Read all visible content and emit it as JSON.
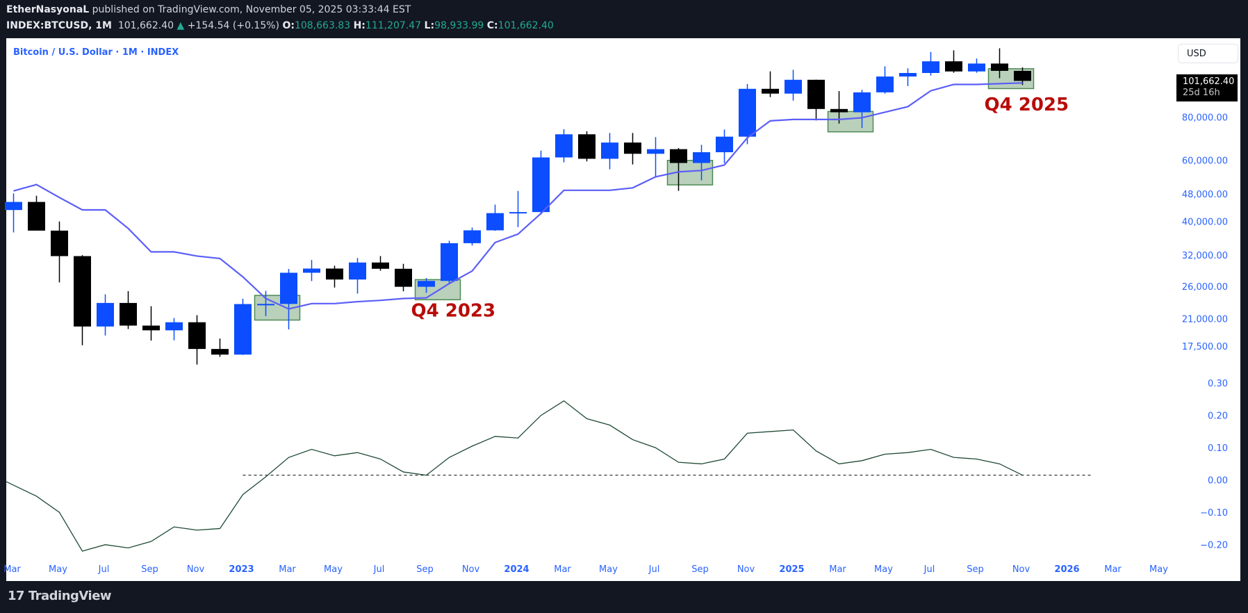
{
  "header": {
    "author": "EtherNasyonaL",
    "published": "published on TradingView.com, November 05, 2025 03:33:44 EST",
    "symbol": "INDEX:BTCUSD, 1M",
    "last": "101,662.40",
    "change": "+154.54 (+0.15%)",
    "o_label": "O:",
    "o": "108,663.83",
    "h_label": "H:",
    "h": "111,207.47",
    "l_label": "L:",
    "l": "98,933.99",
    "c_label": "C:",
    "c": "101,662.40"
  },
  "chart_title": "Bitcoin / U.S. Dollar · 1M · INDEX",
  "currency_button": "USD",
  "price_tag": {
    "price": "101,662.40",
    "countdown": "25d 16h"
  },
  "footer_logo": "TradingView",
  "colors": {
    "up": "#0b4dff",
    "down": "#000000",
    "ma": "#5b5ef7",
    "osc": "#1e4a34",
    "box_fill": "#b9d0bb",
    "box_border": "#4c8a52",
    "annotation": "#b80c09",
    "axis_text": "#2962ff"
  },
  "chart_data": [
    {
      "type": "candlestick",
      "scale": "log",
      "x_start": "2022-03",
      "y_ticks": [
        "17,500.00",
        "21,000.00",
        "26,000.00",
        "32,000.00",
        "40,000.00",
        "48,000.00",
        "60,000.00",
        "80,000.00"
      ],
      "y_tick_values": [
        17500,
        21000,
        26000,
        32000,
        40000,
        48000,
        60000,
        80000
      ],
      "x_tick_labels": [
        "Mar",
        "May",
        "Jul",
        "Sep",
        "Nov",
        "2023",
        "Mar",
        "May",
        "Jul",
        "Sep",
        "Nov",
        "2024",
        "Mar",
        "May",
        "Jul",
        "Sep",
        "Nov",
        "2025",
        "Mar",
        "May",
        "Jul",
        "Sep",
        "Nov",
        "2026",
        "Mar",
        "May"
      ],
      "candles_ohlc": [
        [
          43160,
          48200,
          37200,
          45540
        ],
        [
          45540,
          47440,
          37700,
          37650
        ],
        [
          37650,
          40000,
          26700,
          31790
        ],
        [
          31790,
          31990,
          17600,
          19930
        ],
        [
          19930,
          24670,
          18780,
          23300
        ],
        [
          23300,
          25200,
          19600,
          20050
        ],
        [
          20050,
          22800,
          18150,
          19430
        ],
        [
          19430,
          21080,
          18190,
          20500
        ],
        [
          20500,
          21480,
          15480,
          17170
        ],
        [
          17170,
          18400,
          16300,
          16540
        ],
        [
          16540,
          23960,
          16500,
          23130
        ],
        [
          23130,
          25250,
          21350,
          23150
        ],
        [
          23150,
          29190,
          19550,
          28470
        ],
        [
          28470,
          31000,
          26940,
          29270
        ],
        [
          29270,
          29820,
          25810,
          27220
        ],
        [
          27220,
          31390,
          24790,
          30470
        ],
        [
          30470,
          31810,
          28860,
          29230
        ],
        [
          29230,
          30200,
          25170,
          25940
        ],
        [
          25940,
          27480,
          24920,
          26970
        ],
        [
          26970,
          35200,
          26560,
          34640
        ],
        [
          34640,
          38420,
          34100,
          37720
        ],
        [
          37720,
          44730,
          37600,
          42280
        ],
        [
          42280,
          48970,
          38550,
          42580
        ],
        [
          42580,
          64000,
          41880,
          61180
        ],
        [
          61180,
          73800,
          59220,
          71330
        ],
        [
          71330,
          72800,
          59600,
          60640
        ],
        [
          60640,
          71950,
          56550,
          67530
        ],
        [
          67530,
          71950,
          58400,
          62680
        ],
        [
          62680,
          70000,
          53500,
          64630
        ],
        [
          64630,
          65100,
          49000,
          58970
        ],
        [
          58970,
          66500,
          52550,
          63330
        ],
        [
          63330,
          73620,
          58870,
          70220
        ],
        [
          70220,
          99600,
          66800,
          96450
        ],
        [
          96450,
          108300,
          91300,
          93430
        ],
        [
          93430,
          109400,
          89200,
          102410
        ],
        [
          102410,
          102500,
          78200,
          84370
        ],
        [
          84370,
          95000,
          76600,
          82550
        ],
        [
          82550,
          95800,
          74400,
          94210
        ],
        [
          94210,
          112000,
          93400,
          104640
        ],
        [
          104640,
          110500,
          98200,
          107140
        ],
        [
          107140,
          123200,
          105300,
          115760
        ],
        [
          115760,
          124500,
          107300,
          108240
        ],
        [
          108240,
          117900,
          107300,
          114060
        ],
        [
          114060,
          126200,
          103500,
          108660
        ],
        [
          108660,
          111207,
          98934,
          101662
        ]
      ],
      "ma_values": [
        49000,
        51100,
        46900,
        43200,
        43200,
        38200,
        32700,
        32700,
        31800,
        31300,
        27700,
        24000,
        22400,
        23200,
        23200,
        23500,
        23700,
        24000,
        24100,
        26500,
        28800,
        34800,
        36800,
        42200,
        49200,
        49200,
        49200,
        50000,
        53800,
        55600,
        56100,
        58200,
        69700,
        78000,
        78700,
        78700,
        78700,
        79600,
        82600,
        85700,
        95200,
        99300,
        99300,
        99800,
        100300
      ],
      "highlight_boxes": [
        {
          "from": "2023-02",
          "to": "2023-03",
          "low": 20800,
          "high": 24500
        },
        {
          "from": "2023-09",
          "to": "2023-10",
          "low": 23800,
          "high": 27200
        },
        {
          "from": "2024-08",
          "to": "2024-09",
          "low": 51000,
          "high": 60000
        },
        {
          "from": "2025-03",
          "to": "2025-04",
          "low": 72500,
          "high": 83000
        },
        {
          "from": "2025-10",
          "to": "2025-11",
          "low": 96600,
          "high": 110200
        }
      ],
      "annotations": [
        {
          "text": "Q4 2023",
          "month": "2023-09",
          "price": 21300
        },
        {
          "text": "Q4 2025",
          "month": "2025-10",
          "price": 83500
        }
      ]
    },
    {
      "type": "line",
      "y_ticks": [
        "0.30",
        "0.20",
        "0.10",
        "0.00",
        "−0.10",
        "−0.20"
      ],
      "y_tick_values": [
        0.3,
        0.2,
        0.1,
        0,
        -0.1,
        -0.2
      ],
      "x_start": "2022-03",
      "values": [
        -0.005,
        -0.05,
        -0.1,
        -0.22,
        -0.2,
        -0.21,
        -0.19,
        -0.145,
        -0.155,
        -0.15,
        -0.045,
        0.01,
        0.07,
        0.095,
        0.075,
        0.085,
        0.065,
        0.025,
        0.015,
        0.07,
        0.105,
        0.135,
        0.13,
        0.2,
        0.245,
        0.19,
        0.17,
        0.125,
        0.1,
        0.055,
        0.05,
        0.065,
        0.145,
        0.15,
        0.155,
        0.09,
        0.05,
        0.06,
        0.08,
        0.085,
        0.095,
        0.07,
        0.065,
        0.05,
        0.015
      ],
      "reference_line": {
        "value": 0.015,
        "from": "2023-01",
        "to": "2026-02",
        "style": "dashed"
      }
    }
  ]
}
